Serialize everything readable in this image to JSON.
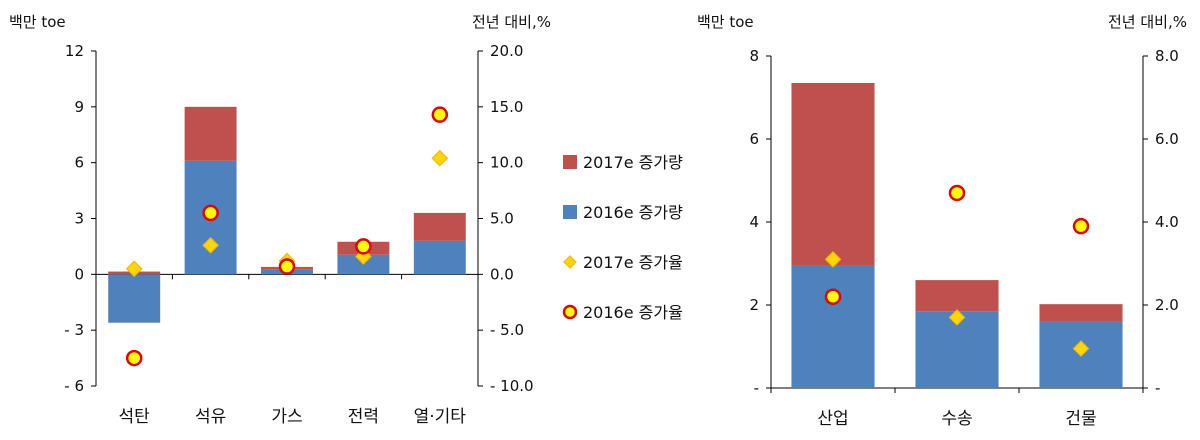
{
  "colors": {
    "bar_2017": "#c0504d",
    "bar_2016": "#4f81bd",
    "diamond_fill": "#ffd700",
    "diamond_edge": "#f5b800",
    "circle_fill": "#ffff00",
    "circle_edge": "#e00000",
    "axis": "#000000"
  },
  "legend": {
    "items": [
      {
        "key": "bar2017",
        "label": "2017e 증가량"
      },
      {
        "key": "bar2016",
        "label": "2016e 증가량"
      },
      {
        "key": "rate2017",
        "label": "2017e 증가율"
      },
      {
        "key": "rate2016",
        "label": "2016e 증가율"
      }
    ]
  },
  "chart_data": [
    {
      "type": "bar",
      "stacked": true,
      "left_unit": "백만 toe",
      "right_unit": "전년 대비,%",
      "categories": [
        "석탄",
        "석유",
        "가스",
        "전력",
        "열·기타"
      ],
      "ylim": [
        -6,
        12
      ],
      "y_ticks": [
        -6,
        -3,
        0,
        3,
        6,
        9,
        12
      ],
      "y_tick_labels": [
        "- 6",
        "- 3",
        "0",
        "3",
        "6",
        "9",
        "12"
      ],
      "y2lim": [
        -10,
        20
      ],
      "y2_ticks": [
        -10,
        -5,
        0,
        5,
        10,
        15,
        20
      ],
      "y2_tick_labels": [
        "- 10.0",
        "- 5.0",
        "0.0",
        "5.0",
        "10.0",
        "15.0",
        "20.0"
      ],
      "series": [
        {
          "name": "2016e 증가량",
          "kind": "bar",
          "axis": "left",
          "values": [
            -2.6,
            6.1,
            0.25,
            1.05,
            1.8
          ]
        },
        {
          "name": "2017e 증가량",
          "kind": "bar",
          "axis": "left",
          "values": [
            0.15,
            2.9,
            0.15,
            0.7,
            1.5
          ]
        },
        {
          "name": "2017e 증가율",
          "kind": "diamond",
          "axis": "right",
          "values": [
            0.5,
            2.6,
            1.2,
            1.6,
            10.4
          ]
        },
        {
          "name": "2016e 증가율",
          "kind": "circle",
          "axis": "right",
          "values": [
            -7.5,
            5.5,
            0.7,
            2.5,
            14.3
          ]
        }
      ]
    },
    {
      "type": "bar",
      "stacked": true,
      "left_unit": "백만 toe",
      "right_unit": "전년 대비,%",
      "categories": [
        "산업",
        "수송",
        "건물"
      ],
      "ylim": [
        0,
        8
      ],
      "y_ticks": [
        0,
        2,
        4,
        6,
        8
      ],
      "y_tick_labels": [
        "-",
        "2",
        "4",
        "6",
        "8"
      ],
      "y2lim": [
        0,
        8
      ],
      "y2_ticks": [
        0,
        2,
        4,
        6,
        8
      ],
      "y2_tick_labels": [
        "-",
        "2.0",
        "4.0",
        "6.0",
        "8.0"
      ],
      "series": [
        {
          "name": "2016e 증가량",
          "kind": "bar",
          "axis": "left",
          "values": [
            2.95,
            1.85,
            1.6
          ]
        },
        {
          "name": "2017e 증가량",
          "kind": "bar",
          "axis": "left",
          "values": [
            4.4,
            0.75,
            0.42
          ]
        },
        {
          "name": "2017e 증가율",
          "kind": "diamond",
          "axis": "right",
          "values": [
            3.1,
            1.7,
            0.95
          ]
        },
        {
          "name": "2016e 증가율",
          "kind": "circle",
          "axis": "right",
          "values": [
            2.2,
            4.7,
            3.9
          ]
        }
      ]
    }
  ]
}
